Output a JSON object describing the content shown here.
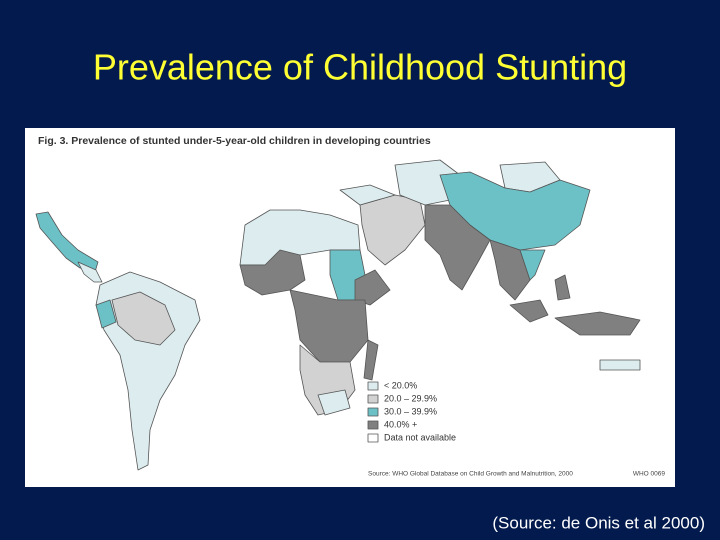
{
  "title": "Prevalence of Childhood Stunting",
  "figure": {
    "caption": "Fig. 3. Prevalence of stunted under-5-year-old children in developing countries",
    "legend": [
      "< 20.0%",
      "20.0 – 29.9%",
      "30.0 – 39.9%",
      "40.0% +",
      "Data not available"
    ],
    "source": "Source: WHO Global Database on Child Growth and Malnutrition, 2000",
    "code": "WHO 0069"
  },
  "citation": "(Source: de Onis et al 2000)"
}
